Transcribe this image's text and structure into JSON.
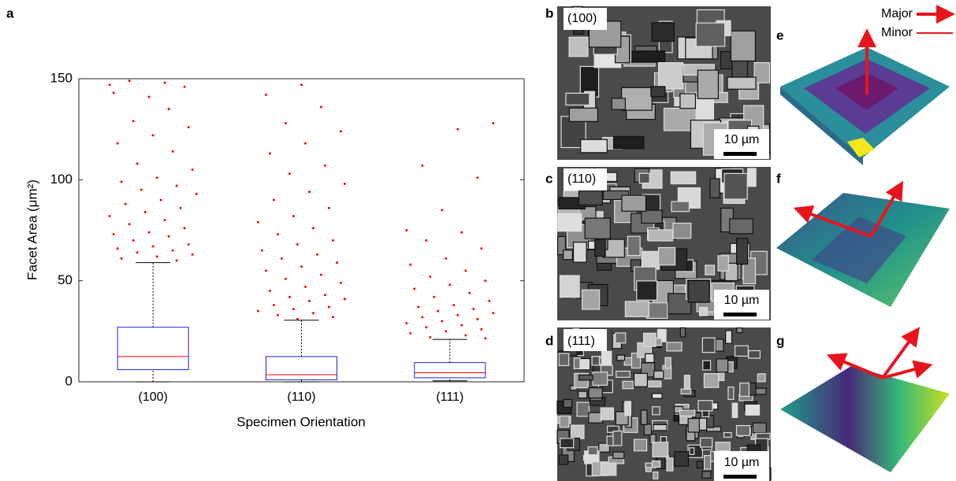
{
  "chart_data": {
    "type": "box",
    "xlabel": "Specimen Orientation",
    "ylabel": "Facet Area (μm²)",
    "categories": [
      "(100)",
      "(110)",
      "(111)"
    ],
    "box_color": "#2020e0",
    "median_color": "#ff0000",
    "outlier_color": "#ff0000",
    "boxes": [
      {
        "min": 0,
        "q1": 6,
        "median": 12.5,
        "q3": 27,
        "max": 59,
        "outliers": [
          147,
          148,
          149,
          146,
          141,
          143,
          135,
          129,
          126,
          122,
          118,
          114,
          108,
          105,
          101,
          99,
          97,
          95,
          93,
          90,
          88,
          86,
          84,
          82,
          80,
          78,
          76,
          74,
          73,
          72,
          70,
          68,
          67,
          66,
          65,
          64,
          63,
          62,
          61,
          60
        ]
      },
      {
        "min": 0,
        "q1": 1,
        "median": 3.5,
        "q3": 12.5,
        "max": 30.5,
        "outliers": [
          147,
          142,
          136,
          128,
          124,
          118,
          113,
          107,
          103,
          98,
          94,
          90,
          86,
          82,
          79,
          76,
          73,
          70,
          68,
          65,
          63,
          61,
          59,
          57,
          55,
          53,
          51,
          49,
          47,
          45,
          43,
          42,
          41,
          40,
          38,
          37,
          36,
          35,
          34,
          33,
          32,
          31
        ]
      },
      {
        "min": 0.5,
        "q1": 2,
        "median": 4.5,
        "q3": 9.5,
        "max": 21,
        "outliers": [
          128,
          125,
          107,
          101,
          85,
          75,
          74,
          70,
          66,
          61,
          58,
          55,
          52,
          50,
          48,
          46,
          44,
          42,
          40,
          38,
          37,
          36,
          35,
          34,
          33,
          32,
          31,
          30,
          29,
          28,
          27,
          26,
          25,
          24,
          23,
          22,
          21.5
        ]
      }
    ],
    "ylim": [
      0,
      150
    ],
    "yticks": [
      0,
      50,
      100,
      150
    ]
  },
  "panels": {
    "letters": [
      "a",
      "b",
      "c",
      "d",
      "e",
      "f",
      "g"
    ],
    "sem_labels": [
      "(100)",
      "(110)",
      "(111)"
    ],
    "scale_label": "10 µm",
    "arrow_legend": [
      "Major",
      "Minor"
    ]
  }
}
